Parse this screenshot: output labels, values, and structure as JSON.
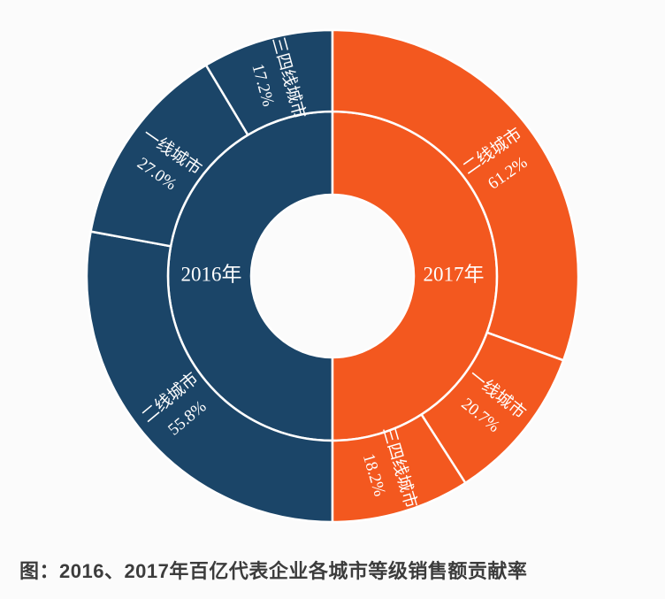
{
  "chart_data": {
    "type": "pie",
    "variant": "nested-half-donut",
    "title": "图：2016、2017年百亿代表企业各城市等级销售额贡献率",
    "rotation": "clockwise",
    "start": "top",
    "separator_color": "#ffffff",
    "series": [
      {
        "key": "2016",
        "name": "2016年",
        "color": "#1b4568",
        "start_angle": 180,
        "label_angle": 270,
        "segments": [
          {
            "key": "tier2",
            "label": "二线城市",
            "value": 55.8,
            "display": "55.8%"
          },
          {
            "key": "tier1",
            "label": "一线城市",
            "value": 27.0,
            "display": "27.0%"
          },
          {
            "key": "tier34",
            "label": "三四线城市",
            "value": 17.2,
            "display": "17.2%"
          }
        ]
      },
      {
        "key": "2017",
        "name": "2017年",
        "color": "#f3581f",
        "start_angle": 0,
        "label_angle": 90,
        "segments": [
          {
            "key": "tier2",
            "label": "二线城市",
            "value": 61.2,
            "display": "61.2%"
          },
          {
            "key": "tier1",
            "label": "一线城市",
            "value": 20.7,
            "display": "20.7%"
          },
          {
            "key": "tier34",
            "label": "三四线城市",
            "value": 18.2,
            "display": "18.2%"
          }
        ]
      }
    ],
    "geometry": {
      "cx": 376,
      "cy": 312,
      "hole_radius": 92,
      "mid_radius": 186,
      "outer_radius": 278,
      "inner_label_radius": 137,
      "label_radius": 229,
      "inner_label_size": 23,
      "seg_label_size": 19,
      "seg_label_line_height": 30,
      "separator_width": 2.5
    }
  }
}
